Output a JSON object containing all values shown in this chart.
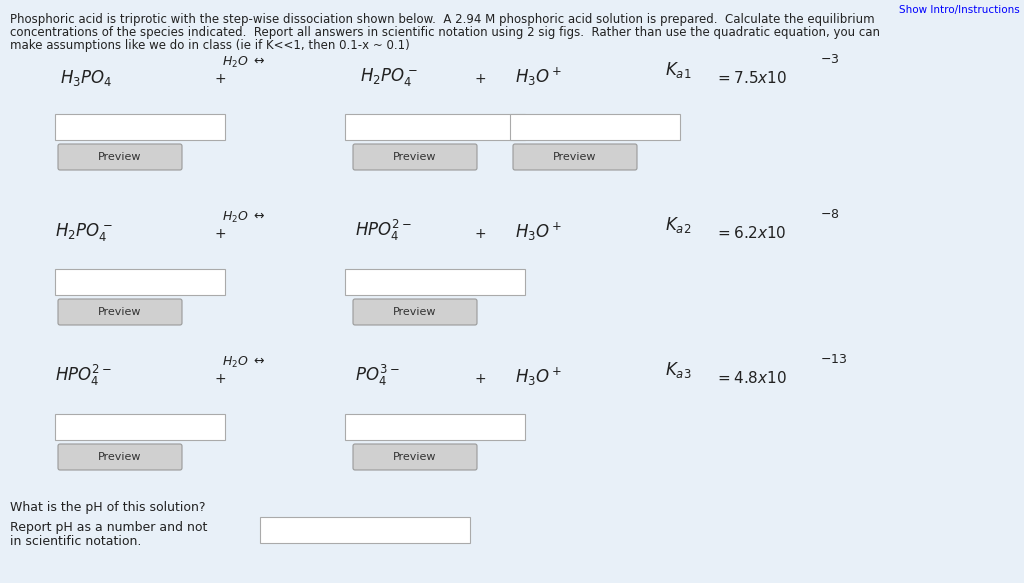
{
  "bg_color": "#e8f0f8",
  "title_line1": "Phosphoric acid is triprotic with the step-wise dissociation shown below.  A 2.94 M phosphoric acid solution is prepared.  Calculate the equilibrium",
  "title_line2": "concentrations of the species indicated.  Report all answers in scientific notation using 2 sig figs.  Rather than use the quadratic equation, you can",
  "title_line3": "make assumptions like we do in class (ie if K<<1, then 0.1-x ~ 0.1)",
  "header_link": "Show Intro/Instructions",
  "font_color": "#222222",
  "box_color": "#ffffff",
  "box_border": "#aaaaaa",
  "preview_bg": "#d0d0d0",
  "preview_border": "#999999"
}
